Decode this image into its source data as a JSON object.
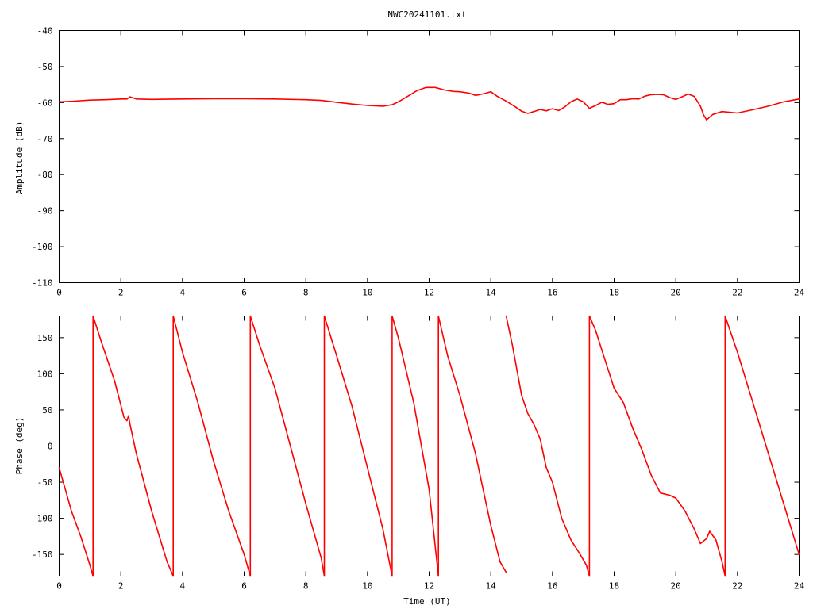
{
  "title": "NWC20241101.txt",
  "colors": {
    "trace": "#ff0000",
    "axes": "#000000",
    "background": "#ffffff"
  },
  "chart_data": [
    {
      "type": "line",
      "title": "NWC20241101.txt",
      "xlabel": "",
      "ylabel": "Amplitude (dB)",
      "xlim": [
        0,
        24
      ],
      "ylim": [
        -110,
        -40
      ],
      "grid": false,
      "xticks": [
        "0",
        "2",
        "4",
        "6",
        "8",
        "10",
        "12",
        "14",
        "16",
        "18",
        "20",
        "22",
        "24"
      ],
      "yticks": [
        "-40",
        "-50",
        "-60",
        "-70",
        "-80",
        "-90",
        "-100",
        "-110"
      ],
      "series": [
        {
          "x": [
            0,
            0.5,
            1,
            1.5,
            2,
            2.2,
            2.3,
            2.5,
            3,
            4,
            5,
            6,
            7,
            8,
            8.5,
            9,
            9.5,
            10,
            10.5,
            10.8,
            11,
            11.3,
            11.6,
            11.9,
            12.2,
            12.5,
            12.8,
            13.0,
            13.3,
            13.5,
            13.8,
            14.0,
            14.2,
            14.5,
            14.8,
            15.0,
            15.2,
            15.4,
            15.6,
            15.8,
            16.0,
            16.2,
            16.4,
            16.6,
            16.8,
            17.0,
            17.2,
            17.4,
            17.6,
            17.8,
            18.0,
            18.2,
            18.4,
            18.6,
            18.8,
            19.0,
            19.2,
            19.4,
            19.6,
            19.8,
            20.0,
            20.2,
            20.4,
            20.6,
            20.8,
            20.9,
            21.0,
            21.2,
            21.5,
            22.0,
            22.5,
            23.0,
            23.5,
            24.0
          ],
          "values": [
            -59.8,
            -59.6,
            -59.3,
            -59.2,
            -59.0,
            -59.0,
            -58.4,
            -59.0,
            -59.1,
            -59.0,
            -58.9,
            -58.9,
            -59.0,
            -59.2,
            -59.4,
            -59.9,
            -60.4,
            -60.8,
            -61.0,
            -60.6,
            -59.8,
            -58.3,
            -56.7,
            -55.8,
            -55.8,
            -56.5,
            -56.9,
            -57.0,
            -57.4,
            -58.0,
            -57.5,
            -57.0,
            -58.2,
            -59.6,
            -61.2,
            -62.4,
            -63.0,
            -62.5,
            -61.9,
            -62.3,
            -61.7,
            -62.2,
            -61.2,
            -59.8,
            -59.0,
            -59.8,
            -61.6,
            -60.8,
            -59.9,
            -60.5,
            -60.3,
            -59.2,
            -59.2,
            -58.9,
            -59.0,
            -58.2,
            -57.8,
            -57.7,
            -57.8,
            -58.6,
            -59.1,
            -58.4,
            -57.6,
            -58.3,
            -61.0,
            -63.4,
            -64.8,
            -63.3,
            -62.5,
            -62.9,
            -62.0,
            -61.0,
            -59.8,
            -59.0
          ]
        }
      ]
    },
    {
      "type": "line",
      "title": "",
      "xlabel": "Time (UT)",
      "ylabel": "Phase (deg)",
      "xlim": [
        0,
        24
      ],
      "ylim": [
        -180,
        180
      ],
      "grid": false,
      "xticks": [
        "0",
        "2",
        "4",
        "6",
        "8",
        "10",
        "12",
        "14",
        "16",
        "18",
        "20",
        "22",
        "24"
      ],
      "yticks": [
        "150",
        "100",
        "50",
        "0",
        "-50",
        "-100",
        "-150"
      ],
      "series": [
        {
          "segments": [
            {
              "x": [
                0.0,
                0.2,
                0.4,
                0.7,
                1.0,
                1.1
              ],
              "values": [
                -30,
                -60,
                -90,
                -125,
                -165,
                -180
              ]
            },
            {
              "x": [
                1.1,
                1.1,
                1.4,
                1.8,
                2.1,
                2.2,
                2.25,
                2.3,
                2.5,
                3.0,
                3.5,
                3.7
              ],
              "values": [
                -180,
                180,
                140,
                90,
                40,
                35,
                42,
                30,
                -10,
                -90,
                -160,
                -180
              ]
            },
            {
              "x": [
                3.7,
                3.7,
                4.0,
                4.5,
                5.0,
                5.5,
                6.0,
                6.2
              ],
              "values": [
                -180,
                180,
                130,
                60,
                -20,
                -90,
                -150,
                -180
              ]
            },
            {
              "x": [
                6.2,
                6.2,
                6.5,
                7.0,
                7.5,
                8.0,
                8.5,
                8.6
              ],
              "values": [
                -180,
                180,
                140,
                80,
                0,
                -80,
                -155,
                -180
              ]
            },
            {
              "x": [
                8.6,
                8.6,
                9.0,
                9.5,
                10.0,
                10.5,
                10.8
              ],
              "values": [
                -180,
                180,
                125,
                55,
                -30,
                -115,
                -180
              ]
            },
            {
              "x": [
                10.8,
                10.8,
                11.0,
                11.5,
                12.0,
                12.3
              ],
              "values": [
                -180,
                180,
                150,
                60,
                -60,
                -180
              ]
            },
            {
              "x": [
                12.3,
                12.3,
                12.6,
                13.0,
                13.5,
                14.0,
                14.3,
                14.5
              ],
              "values": [
                -180,
                180,
                125,
                70,
                -10,
                -110,
                -160,
                -175
              ]
            },
            {
              "x": [
                14.5,
                14.55,
                14.7,
                15.0,
                15.2,
                15.4,
                15.6,
                15.8,
                16.0,
                16.3,
                16.6,
                16.9,
                17.1,
                17.2
              ],
              "values": [
                180,
                170,
                140,
                70,
                45,
                30,
                10,
                -30,
                -50,
                -100,
                -130,
                -150,
                -165,
                -180
              ]
            },
            {
              "x": [
                17.2,
                17.2,
                17.4,
                17.7,
                18.0,
                18.3,
                18.6,
                18.9,
                19.2,
                19.5,
                19.8,
                20.0,
                20.3,
                20.6,
                20.8,
                21.0,
                21.1,
                21.3,
                21.5,
                21.6
              ],
              "values": [
                -180,
                180,
                160,
                120,
                80,
                60,
                25,
                -5,
                -40,
                -65,
                -68,
                -72,
                -90,
                -115,
                -135,
                -128,
                -118,
                -130,
                -160,
                -180
              ]
            },
            {
              "x": [
                21.6,
                21.6,
                22.0,
                22.5,
                23.0,
                23.5,
                24.0
              ],
              "values": [
                -180,
                180,
                130,
                60,
                -10,
                -80,
                -150
              ]
            }
          ]
        }
      ]
    }
  ]
}
